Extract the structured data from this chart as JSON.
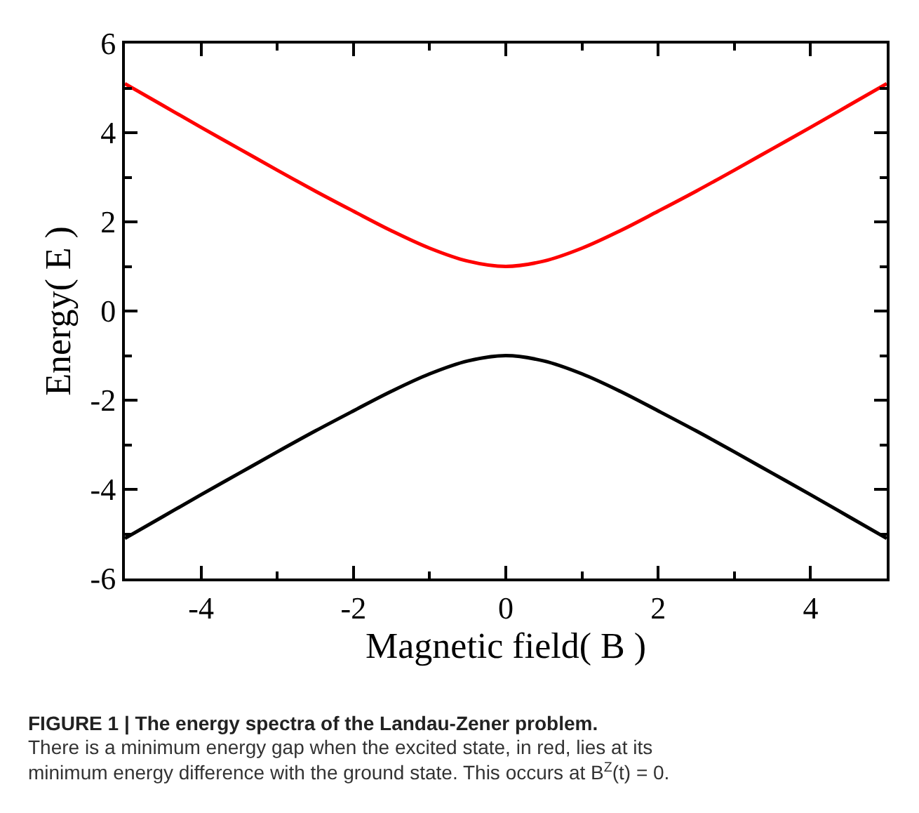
{
  "chart_data": {
    "type": "line",
    "title": "FIGURE 1 | The energy spectra of the Landau-Zener problem.",
    "xlabel": "Magnetic field( B )",
    "ylabel": "Energy( E )",
    "x": [
      -5,
      -4.5,
      -4,
      -3.5,
      -3,
      -2.5,
      -2,
      -1.5,
      -1,
      -0.5,
      0,
      0.5,
      1,
      1.5,
      2,
      2.5,
      3,
      3.5,
      4,
      4.5,
      5
    ],
    "series": [
      {
        "color": "#ff0000",
        "values": [
          5.1,
          4.61,
          4.12,
          3.64,
          3.16,
          2.69,
          2.24,
          1.8,
          1.41,
          1.12,
          1.0,
          1.12,
          1.41,
          1.8,
          2.24,
          2.69,
          3.16,
          3.64,
          4.12,
          4.61,
          5.1
        ]
      },
      {
        "color": "#000000",
        "values": [
          -5.1,
          -4.61,
          -4.12,
          -3.64,
          -3.16,
          -2.69,
          -2.24,
          -1.8,
          -1.41,
          -1.12,
          -1.0,
          -1.12,
          -1.41,
          -1.8,
          -2.24,
          -2.69,
          -3.16,
          -3.64,
          -4.12,
          -4.61,
          -5.1
        ]
      }
    ],
    "xlim": [
      -5,
      5
    ],
    "xticks": [
      -4,
      -2,
      0,
      2,
      4
    ],
    "ylim": [
      -6,
      6
    ],
    "yticks": [
      -6,
      -4,
      -2,
      0,
      2,
      4,
      6
    ],
    "marker": "none",
    "line_style": "solid",
    "annotations": [
      "There is a minimum energy gap when the excited state, in red, lies at its minimum energy difference with the ground state. This occurs at B$^{Z}$(t) = 0."
    ]
  }
}
